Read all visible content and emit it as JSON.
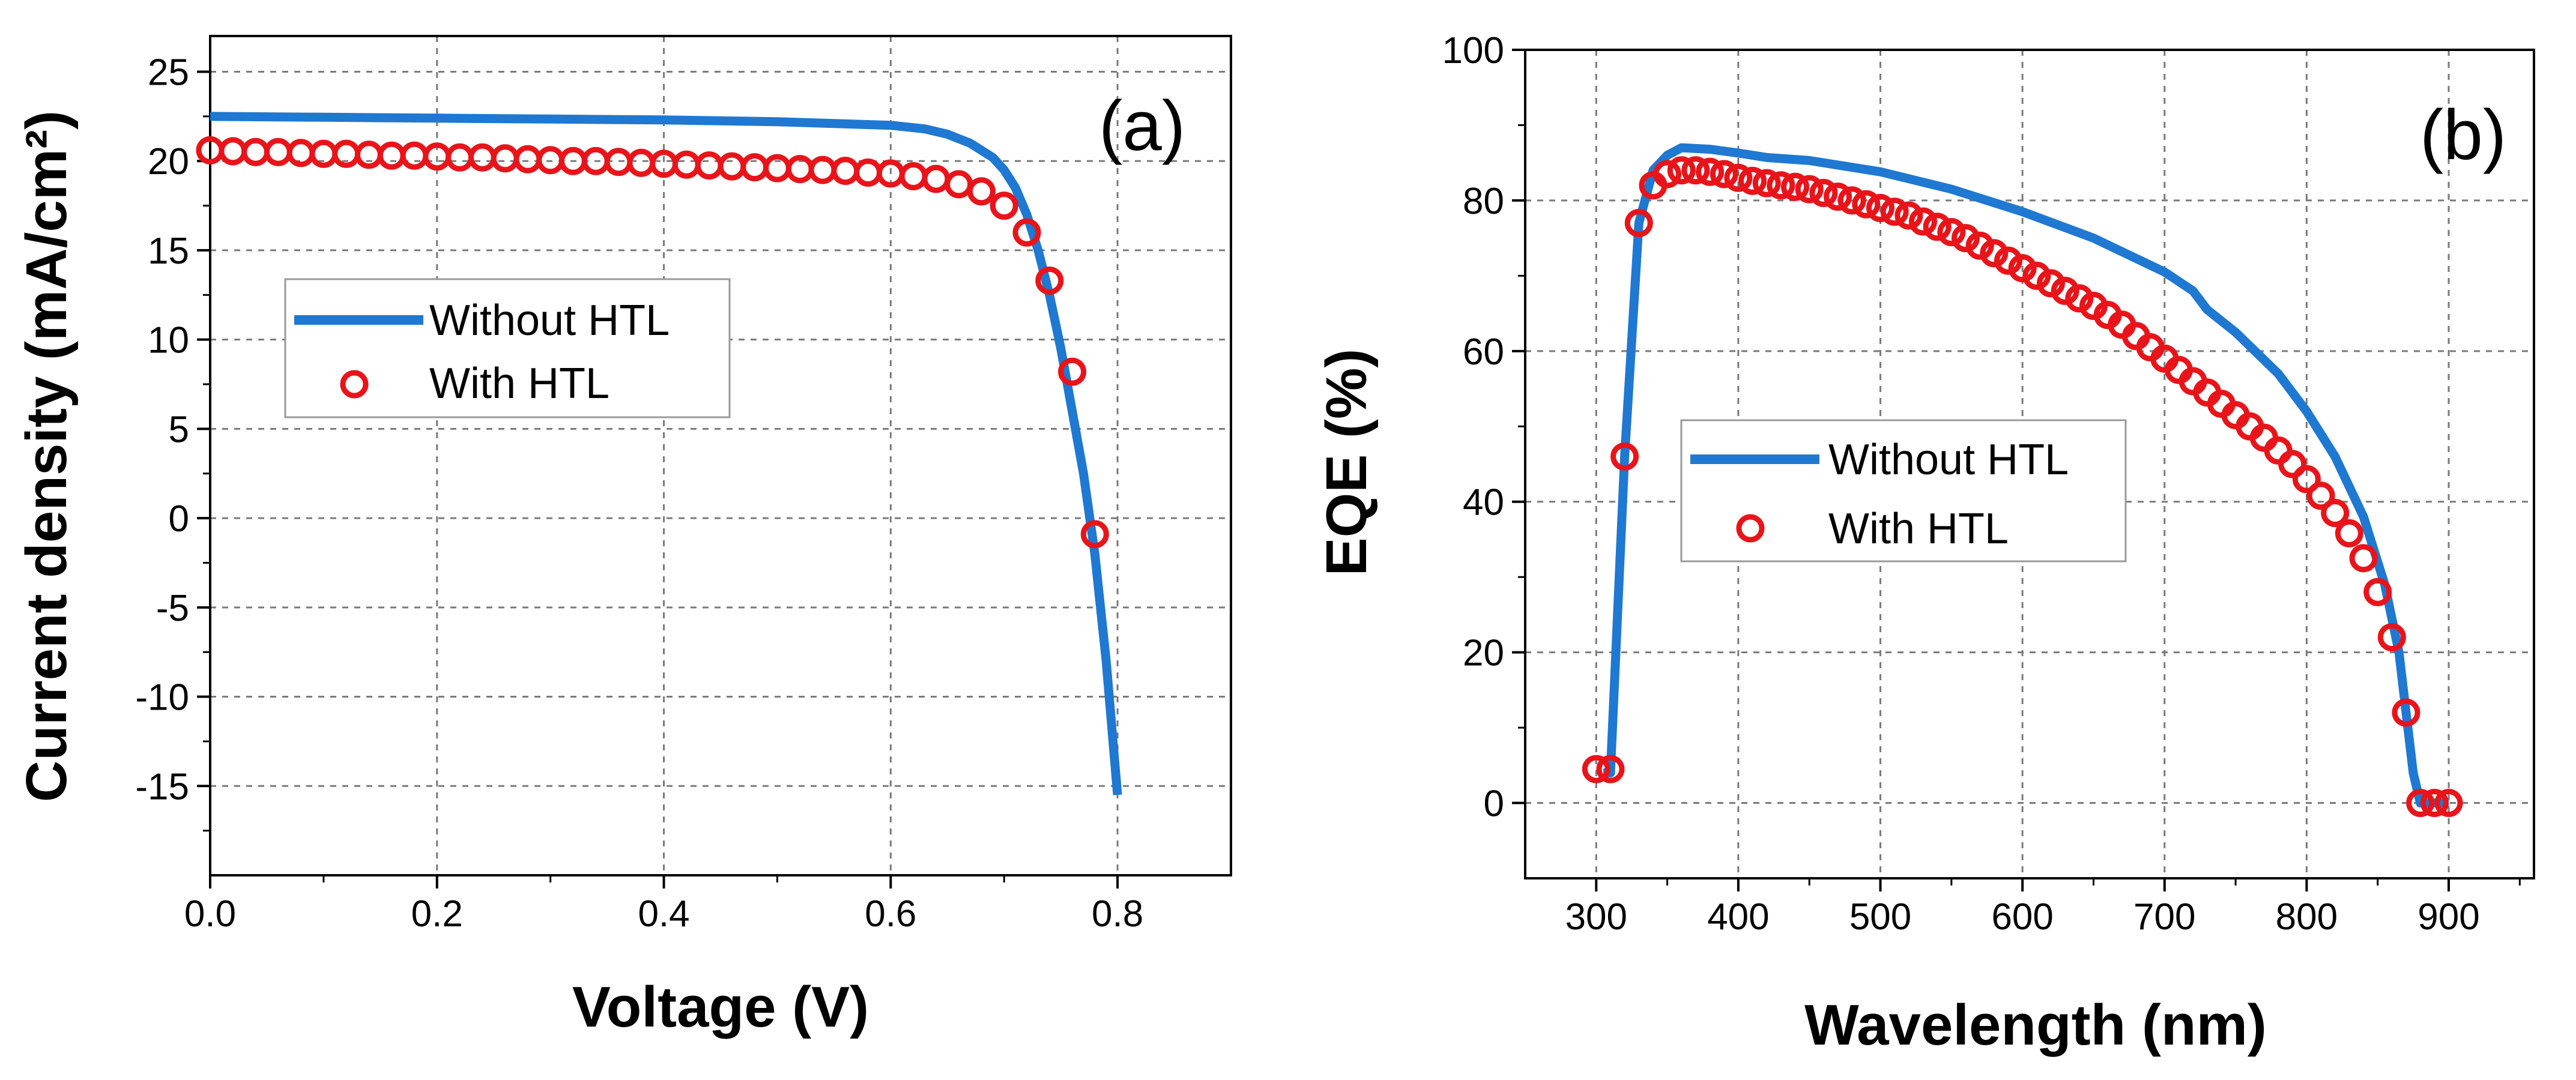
{
  "chart_data": [
    {
      "type": "line",
      "panel_label": "(a)",
      "xlabel": "Voltage (V)",
      "ylabel": "Current density (mA/cm²)",
      "xlim": [
        0,
        0.9
      ],
      "ylim": [
        -20,
        27
      ],
      "xticks": [
        0.0,
        0.2,
        0.4,
        0.6,
        0.8
      ],
      "xtick_labels": [
        "0.0",
        "0.2",
        "0.4",
        "0.6",
        "0.8"
      ],
      "yticks": [
        -15,
        -10,
        -5,
        0,
        5,
        10,
        15,
        20,
        25
      ],
      "ytick_labels": [
        "-15",
        "-10",
        "-5",
        "0",
        "5",
        "10",
        "15",
        "20",
        "25"
      ],
      "grid": true,
      "legend_position": "center-left",
      "series": [
        {
          "name": "Without HTL",
          "style": "line",
          "color": "#1f78d1",
          "x": [
            0.0,
            0.1,
            0.2,
            0.3,
            0.4,
            0.5,
            0.55,
            0.6,
            0.63,
            0.65,
            0.67,
            0.69,
            0.7,
            0.71,
            0.72,
            0.73,
            0.74,
            0.75,
            0.76,
            0.77,
            0.78,
            0.79,
            0.8
          ],
          "y": [
            22.5,
            22.45,
            22.4,
            22.35,
            22.3,
            22.2,
            22.1,
            22.0,
            21.8,
            21.5,
            21.0,
            20.2,
            19.5,
            18.5,
            17.0,
            15.0,
            12.5,
            9.5,
            6.0,
            2.5,
            -2.0,
            -8.0,
            -15.5
          ]
        },
        {
          "name": "With HTL",
          "style": "markers",
          "color": "#e8141a",
          "x": [
            0.0,
            0.02,
            0.04,
            0.06,
            0.08,
            0.1,
            0.12,
            0.14,
            0.16,
            0.18,
            0.2,
            0.22,
            0.24,
            0.26,
            0.28,
            0.3,
            0.32,
            0.34,
            0.36,
            0.38,
            0.4,
            0.42,
            0.44,
            0.46,
            0.48,
            0.5,
            0.52,
            0.54,
            0.56,
            0.58,
            0.6,
            0.62,
            0.64,
            0.66,
            0.68,
            0.7,
            0.72,
            0.74,
            0.76,
            0.78
          ],
          "y": [
            20.6,
            20.55,
            20.5,
            20.5,
            20.45,
            20.4,
            20.4,
            20.35,
            20.3,
            20.3,
            20.25,
            20.2,
            20.2,
            20.15,
            20.1,
            20.05,
            20.0,
            20.0,
            19.95,
            19.9,
            19.85,
            19.8,
            19.75,
            19.7,
            19.65,
            19.6,
            19.55,
            19.5,
            19.45,
            19.35,
            19.3,
            19.15,
            19.0,
            18.7,
            18.3,
            17.5,
            16.0,
            13.3,
            8.2,
            -0.9
          ]
        }
      ]
    },
    {
      "type": "line",
      "panel_label": "(b)",
      "xlabel": "Wavelength (nm)",
      "ylabel": "EQE (%)",
      "xlim": [
        250,
        960
      ],
      "ylim": [
        -10,
        100
      ],
      "xticks": [
        300,
        400,
        500,
        600,
        700,
        800,
        900
      ],
      "xtick_labels": [
        "300",
        "400",
        "500",
        "600",
        "700",
        "800",
        "900"
      ],
      "yticks": [
        0,
        20,
        40,
        60,
        80,
        100
      ],
      "ytick_labels": [
        "0",
        "20",
        "40",
        "60",
        "80",
        "100"
      ],
      "grid": true,
      "legend_position": "center-right",
      "series": [
        {
          "name": "Without HTL",
          "style": "line",
          "color": "#1f78d1",
          "x": [
            305,
            310,
            320,
            330,
            340,
            350,
            360,
            380,
            400,
            420,
            450,
            500,
            550,
            600,
            650,
            700,
            720,
            730,
            750,
            780,
            800,
            820,
            840,
            855,
            865,
            870,
            875,
            880,
            890,
            900
          ],
          "y": [
            4,
            4,
            46,
            77,
            84,
            86,
            87,
            86.8,
            86.3,
            85.7,
            85.3,
            83.8,
            81.5,
            78.5,
            75,
            70.5,
            68,
            65.5,
            62.5,
            57,
            52,
            46,
            38,
            29,
            20,
            12,
            4,
            0,
            0,
            0
          ]
        },
        {
          "name": "With HTL",
          "style": "markers",
          "color": "#e8141a",
          "x": [
            300,
            310,
            320,
            330,
            340,
            350,
            360,
            370,
            380,
            390,
            400,
            410,
            420,
            430,
            440,
            450,
            460,
            470,
            480,
            490,
            500,
            510,
            520,
            530,
            540,
            550,
            560,
            570,
            580,
            590,
            600,
            610,
            620,
            630,
            640,
            650,
            660,
            670,
            680,
            690,
            700,
            710,
            720,
            730,
            740,
            750,
            760,
            770,
            780,
            790,
            800,
            810,
            820,
            830,
            840,
            850,
            860,
            870,
            880,
            890,
            900
          ],
          "y": [
            4.5,
            4.5,
            46,
            77,
            82,
            83.5,
            84,
            84,
            83.8,
            83.5,
            83,
            82.6,
            82.3,
            82,
            81.8,
            81.5,
            81,
            80.5,
            80,
            79.5,
            79,
            78.5,
            78,
            77.2,
            76.5,
            75.8,
            75,
            74,
            73,
            72,
            71,
            70,
            69,
            68,
            67,
            66,
            64.8,
            63.5,
            62,
            60.5,
            59,
            57.5,
            56,
            54.5,
            53,
            51.5,
            50,
            48.5,
            46.8,
            45,
            43,
            40.8,
            38.5,
            35.8,
            32.5,
            28,
            22,
            12,
            0,
            0,
            0
          ]
        }
      ]
    }
  ]
}
